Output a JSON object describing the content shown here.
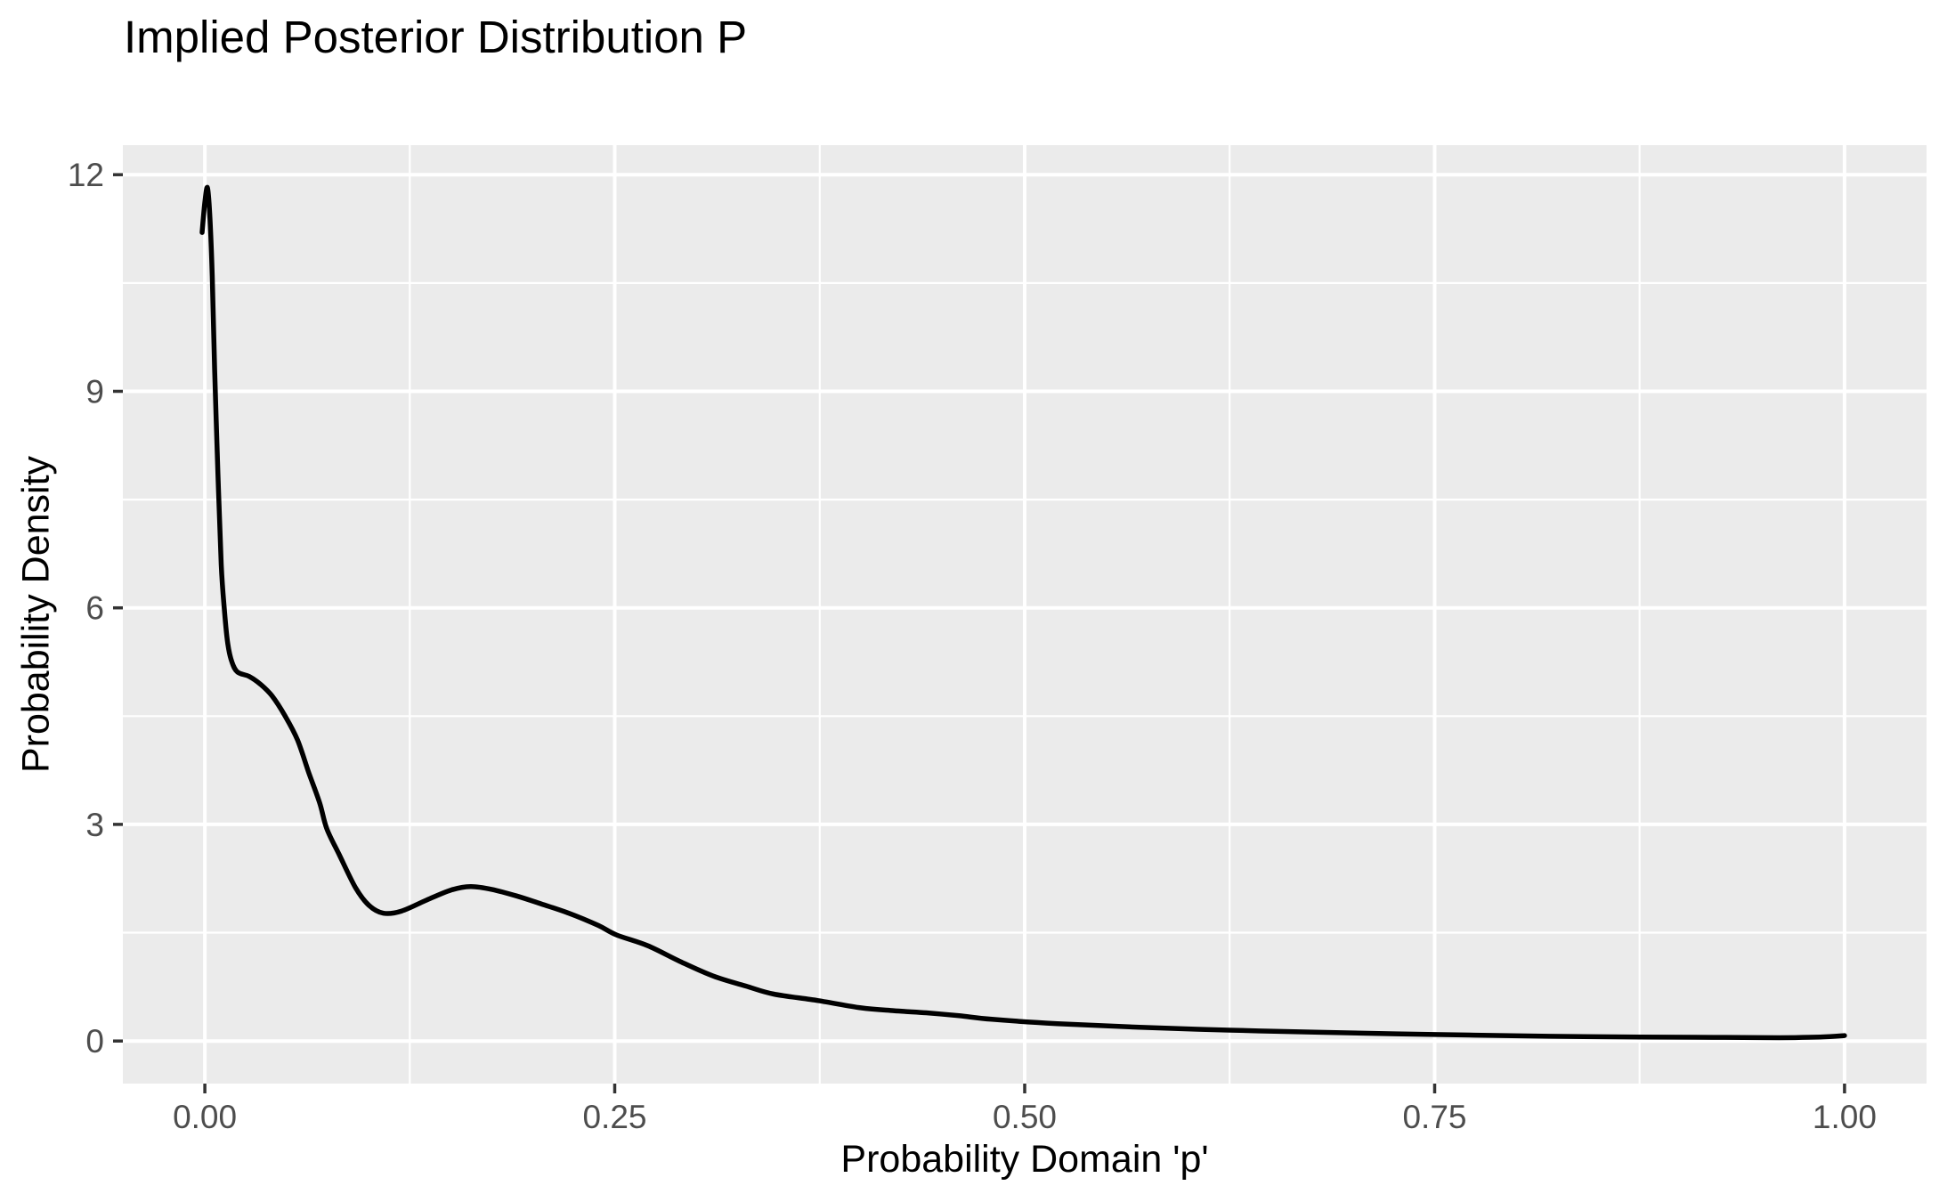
{
  "page": {
    "background": "#FFFFFF"
  },
  "chart_data": {
    "type": "line",
    "title": "Implied Posterior Distribution P",
    "xlabel": "Probability Domain 'p'",
    "ylabel": "Probability Density",
    "xlim": [
      -0.05,
      1.05
    ],
    "ylim": [
      -0.59,
      12.41
    ],
    "grid": true,
    "legend": false,
    "x_ticks": [
      {
        "value": 0.0,
        "label": "0.00"
      },
      {
        "value": 0.25,
        "label": "0.25"
      },
      {
        "value": 0.5,
        "label": "0.50"
      },
      {
        "value": 0.75,
        "label": "0.75"
      },
      {
        "value": 1.0,
        "label": "1.00"
      }
    ],
    "y_ticks": [
      {
        "value": 0,
        "label": "0"
      },
      {
        "value": 3,
        "label": "3"
      },
      {
        "value": 6,
        "label": "6"
      },
      {
        "value": 9,
        "label": "9"
      },
      {
        "value": 12,
        "label": "12"
      }
    ],
    "x_minor_breaks": [
      0.125,
      0.375,
      0.625,
      0.875
    ],
    "y_minor_breaks": [
      1.5,
      4.5,
      7.5,
      10.5
    ],
    "theme": {
      "panel_bg": "#EBEBEB",
      "grid_color": "#FFFFFF",
      "tick_color": "#333333",
      "tick_label_color": "#4D4D4D",
      "text_color": "#000000",
      "line_color": "#000000"
    },
    "series": [
      {
        "name": "posterior density",
        "points": [
          [
            -0.0017,
            11.2
          ],
          [
            0.0,
            11.62
          ],
          [
            0.0016,
            11.82
          ],
          [
            0.003,
            11.45
          ],
          [
            0.0045,
            10.6
          ],
          [
            0.006,
            9.3
          ],
          [
            0.008,
            7.85
          ],
          [
            0.01,
            6.6
          ],
          [
            0.012,
            5.95
          ],
          [
            0.014,
            5.5
          ],
          [
            0.0165,
            5.25
          ],
          [
            0.02,
            5.11
          ],
          [
            0.027,
            5.05
          ],
          [
            0.034,
            4.94
          ],
          [
            0.041,
            4.78
          ],
          [
            0.049,
            4.5
          ],
          [
            0.0565,
            4.17
          ],
          [
            0.0635,
            3.71
          ],
          [
            0.07,
            3.3
          ],
          [
            0.0744,
            2.94
          ],
          [
            0.082,
            2.58
          ],
          [
            0.092,
            2.12
          ],
          [
            0.1,
            1.88
          ],
          [
            0.109,
            1.77
          ],
          [
            0.12,
            1.8
          ],
          [
            0.135,
            1.95
          ],
          [
            0.15,
            2.09
          ],
          [
            0.162,
            2.14
          ],
          [
            0.175,
            2.1
          ],
          [
            0.19,
            2.01
          ],
          [
            0.205,
            1.9
          ],
          [
            0.222,
            1.77
          ],
          [
            0.24,
            1.6
          ],
          [
            0.251,
            1.47
          ],
          [
            0.27,
            1.32
          ],
          [
            0.29,
            1.1
          ],
          [
            0.31,
            0.9
          ],
          [
            0.33,
            0.76
          ],
          [
            0.347,
            0.65
          ],
          [
            0.374,
            0.56
          ],
          [
            0.4,
            0.46
          ],
          [
            0.42,
            0.42
          ],
          [
            0.44,
            0.39
          ],
          [
            0.46,
            0.35
          ],
          [
            0.48,
            0.3
          ],
          [
            0.52,
            0.24
          ],
          [
            0.57,
            0.19
          ],
          [
            0.625,
            0.15
          ],
          [
            0.68,
            0.12
          ],
          [
            0.75,
            0.09
          ],
          [
            0.82,
            0.065
          ],
          [
            0.875,
            0.055
          ],
          [
            0.92,
            0.05
          ],
          [
            0.96,
            0.045
          ],
          [
            0.985,
            0.055
          ],
          [
            1.0,
            0.075
          ]
        ]
      }
    ]
  }
}
